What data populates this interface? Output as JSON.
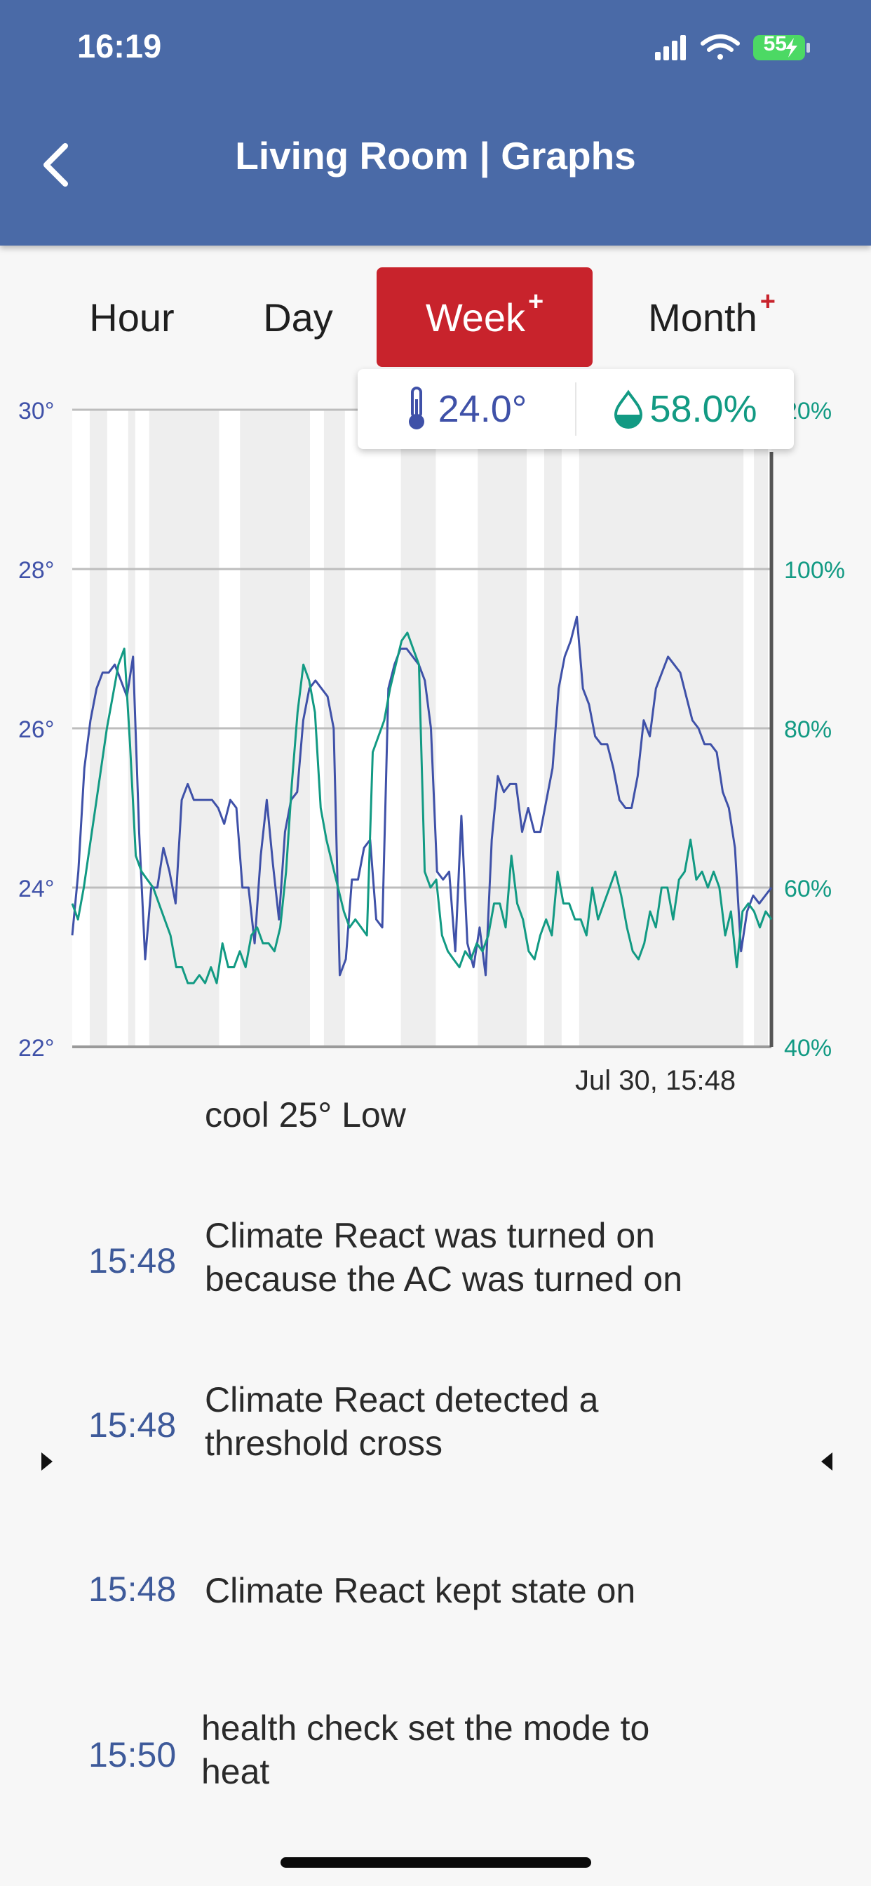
{
  "status_bar": {
    "time": "16:19",
    "battery_level": "55",
    "icons": [
      "signal-icon",
      "wifi-icon",
      "battery-charging-icon"
    ]
  },
  "header": {
    "title": "Living Room | Graphs",
    "back_icon": "chevron-left-icon",
    "background_color": "#4a6aa7"
  },
  "tabs": [
    {
      "label": "Hour",
      "active": false,
      "plus": ""
    },
    {
      "label": "Day",
      "active": false,
      "plus": ""
    },
    {
      "label": "Week",
      "active": true,
      "plus": "+"
    },
    {
      "label": "Month",
      "active": false,
      "plus": "+"
    }
  ],
  "accent_color": "#c8232c",
  "tooltip": {
    "temperature": "24.0°",
    "humidity": "58.0%",
    "temp_icon": "thermometer-icon",
    "humidity_icon": "droplet-icon"
  },
  "chart_data": {
    "type": "line",
    "left_axis": {
      "ticks": [
        "30°",
        "28°",
        "26°",
        "24°",
        "22°"
      ],
      "range": [
        22,
        30
      ],
      "color": "#3f51a8"
    },
    "right_axis": {
      "ticks": [
        "20%",
        "100%",
        "80%",
        "60%",
        "40%"
      ],
      "range": [
        40,
        120
      ],
      "color": "#129a83"
    },
    "grid": true,
    "x_label": "Jul 30, 15:48",
    "shaded_periods": [
      [
        0.025,
        0.05
      ],
      [
        0.08,
        0.09
      ],
      [
        0.11,
        0.21
      ],
      [
        0.24,
        0.34
      ],
      [
        0.36,
        0.39
      ],
      [
        0.47,
        0.52
      ],
      [
        0.58,
        0.65
      ],
      [
        0.675,
        0.7
      ],
      [
        0.725,
        0.96
      ],
      [
        0.975,
        0.995
      ]
    ],
    "series": [
      {
        "name": "Temperature",
        "color": "#3f51a8",
        "values": [
          23.4,
          24.2,
          25.5,
          26.1,
          26.5,
          26.7,
          26.7,
          26.8,
          26.6,
          26.4,
          26.9,
          24.7,
          23.1,
          24.0,
          24.0,
          24.5,
          24.2,
          23.8,
          25.1,
          25.3,
          25.1,
          25.1,
          25.1,
          25.1,
          25.0,
          24.8,
          25.1,
          25.0,
          24.0,
          24.0,
          23.3,
          24.4,
          25.1,
          24.3,
          23.6,
          24.7,
          25.1,
          25.2,
          26.1,
          26.5,
          26.6,
          26.5,
          26.4,
          26.0,
          22.9,
          23.1,
          24.1,
          24.1,
          24.5,
          24.6,
          23.6,
          23.5,
          26.5,
          26.8,
          27.0,
          27.0,
          26.9,
          26.8,
          26.6,
          26.0,
          24.2,
          24.1,
          24.2,
          23.2,
          24.9,
          23.3,
          23.0,
          23.5,
          22.9,
          24.6,
          25.4,
          25.2,
          25.3,
          25.3,
          24.7,
          25.0,
          24.7,
          24.7,
          25.1,
          25.5,
          26.5,
          26.9,
          27.1,
          27.4,
          26.5,
          26.3,
          25.9,
          25.8,
          25.8,
          25.5,
          25.1,
          25.0,
          25.0,
          25.4,
          26.1,
          25.9,
          26.5,
          26.7,
          26.9,
          26.8,
          26.7,
          26.4,
          26.1,
          26.0,
          25.8,
          25.8,
          25.7,
          25.2,
          25.0,
          24.5,
          23.2,
          23.7,
          23.9,
          23.8,
          23.9,
          24.0
        ]
      },
      {
        "name": "Humidity",
        "color": "#129a83",
        "values": [
          58,
          56,
          60,
          65,
          70,
          75,
          80,
          84,
          88,
          90,
          78,
          64,
          62,
          61,
          60,
          58,
          56,
          54,
          50,
          50,
          48,
          48,
          49,
          48,
          50,
          48,
          53,
          50,
          50,
          52,
          50,
          54,
          55,
          53,
          53,
          52,
          55,
          62,
          73,
          82,
          88,
          86,
          82,
          70,
          66,
          63,
          60,
          57,
          55,
          56,
          55,
          54,
          77,
          79,
          81,
          85,
          88,
          91,
          92,
          90,
          88,
          62,
          60,
          61,
          54,
          52,
          51,
          50,
          52,
          51,
          53,
          52,
          54,
          58,
          58,
          55,
          64,
          58,
          56,
          52,
          51,
          54,
          56,
          54,
          62,
          58,
          58,
          56,
          56,
          54,
          60,
          56,
          58,
          60,
          62,
          59,
          55,
          52,
          51,
          53,
          57,
          55,
          60,
          60,
          56,
          61,
          62,
          66,
          61,
          62,
          60,
          62,
          60,
          54,
          57,
          50,
          57,
          58,
          57,
          55,
          57,
          56
        ]
      }
    ]
  },
  "events": {
    "clipped_text": "cool 25° Low",
    "items": [
      {
        "time": "15:48",
        "text_line1": "Climate React was turned on",
        "text_line2": "because the AC was turned on"
      },
      {
        "time": "15:48",
        "text_line1": "Climate React detected a",
        "text_line2": "threshold cross"
      },
      {
        "time": "15:48",
        "text_line1": "Climate React kept state on",
        "text_line2": ""
      },
      {
        "time": "15:50",
        "text_line1": "health check set the mode to",
        "text_line2": "heat"
      }
    ]
  }
}
